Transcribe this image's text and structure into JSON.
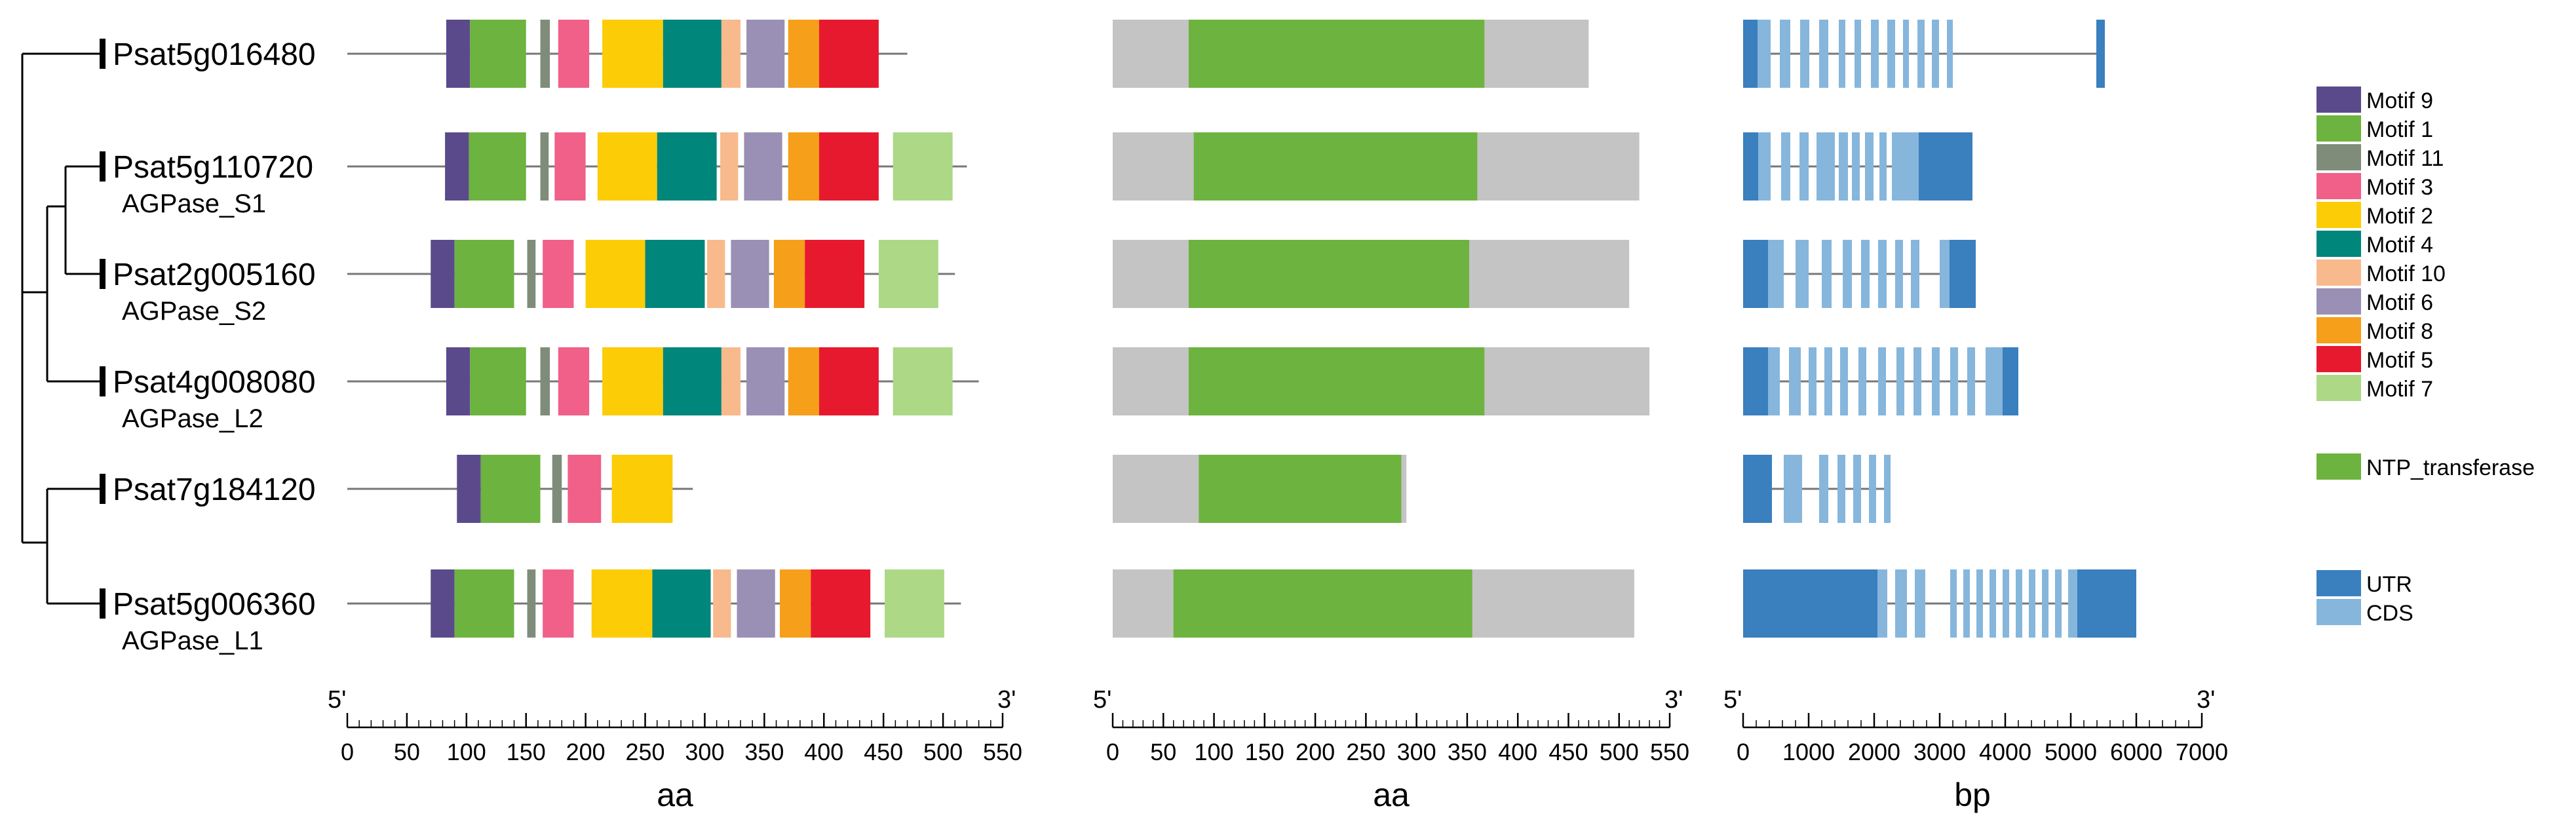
{
  "colors": {
    "motif_9": "#5b4a8b",
    "motif_1": "#6db33f",
    "motif_11": "#7f8c7a",
    "motif_3": "#f06088",
    "motif_2": "#fccc06",
    "motif_4": "#00867a",
    "motif_10": "#f8b98c",
    "motif_6": "#9a8fb4",
    "motif_8": "#f59f1b",
    "motif_5": "#e7192e",
    "motif_7": "#add886",
    "domain_bg": "#c4c4c4",
    "ntp": "#6db33f",
    "utr": "#3a7fbe",
    "cds": "#86b6dc",
    "line": "#777777"
  },
  "genes": [
    {
      "id": "Psat5g016480",
      "name": "",
      "length_aa": 470,
      "motifs": [
        {
          "m": "motif_9",
          "s": 83,
          "e": 103
        },
        {
          "m": "motif_1",
          "s": 103,
          "e": 150
        },
        {
          "m": "motif_11",
          "s": 162,
          "e": 170
        },
        {
          "m": "motif_3",
          "s": 177,
          "e": 203
        },
        {
          "m": "motif_2",
          "s": 214,
          "e": 265
        },
        {
          "m": "motif_4",
          "s": 265,
          "e": 314
        },
        {
          "m": "motif_10",
          "s": 314,
          "e": 330
        },
        {
          "m": "motif_6",
          "s": 335,
          "e": 367
        },
        {
          "m": "motif_8",
          "s": 370,
          "e": 396
        },
        {
          "m": "motif_5",
          "s": 396,
          "e": 446
        }
      ],
      "domain": {
        "s": 75,
        "e": 367
      },
      "gene_length_bp": 5520,
      "exons": [
        {
          "t": "utr",
          "s": 0,
          "e": 220
        },
        {
          "t": "cds",
          "s": 220,
          "e": 420
        },
        {
          "t": "cds",
          "s": 560,
          "e": 720
        },
        {
          "t": "cds",
          "s": 870,
          "e": 1010
        },
        {
          "t": "cds",
          "s": 1160,
          "e": 1300
        },
        {
          "t": "cds",
          "s": 1460,
          "e": 1560
        },
        {
          "t": "cds",
          "s": 1700,
          "e": 1800
        },
        {
          "t": "cds",
          "s": 1950,
          "e": 2070
        },
        {
          "t": "cds",
          "s": 2200,
          "e": 2320
        },
        {
          "t": "cds",
          "s": 2440,
          "e": 2530
        },
        {
          "t": "cds",
          "s": 2660,
          "e": 2770
        },
        {
          "t": "cds",
          "s": 2880,
          "e": 2990
        },
        {
          "t": "cds",
          "s": 3110,
          "e": 3200
        },
        {
          "t": "utr",
          "s": 5390,
          "e": 5520
        }
      ]
    },
    {
      "id": "Psat5g110720",
      "name": "AGPase_S1",
      "length_aa": 520,
      "motifs": [
        {
          "m": "motif_9",
          "s": 82,
          "e": 102
        },
        {
          "m": "motif_1",
          "s": 102,
          "e": 150
        },
        {
          "m": "motif_11",
          "s": 162,
          "e": 169
        },
        {
          "m": "motif_3",
          "s": 174,
          "e": 200
        },
        {
          "m": "motif_2",
          "s": 210,
          "e": 260
        },
        {
          "m": "motif_4",
          "s": 260,
          "e": 310
        },
        {
          "m": "motif_10",
          "s": 313,
          "e": 328
        },
        {
          "m": "motif_6",
          "s": 333,
          "e": 365
        },
        {
          "m": "motif_8",
          "s": 370,
          "e": 396
        },
        {
          "m": "motif_5",
          "s": 396,
          "e": 446
        },
        {
          "m": "motif_7",
          "s": 458,
          "e": 508
        }
      ],
      "domain": {
        "s": 80,
        "e": 360
      },
      "gene_length_bp": 3500,
      "exons": [
        {
          "t": "utr",
          "s": 0,
          "e": 230
        },
        {
          "t": "cds",
          "s": 230,
          "e": 420
        },
        {
          "t": "cds",
          "s": 580,
          "e": 720
        },
        {
          "t": "cds",
          "s": 860,
          "e": 1000
        },
        {
          "t": "cds",
          "s": 1120,
          "e": 1400
        },
        {
          "t": "cds",
          "s": 1460,
          "e": 1600
        },
        {
          "t": "cds",
          "s": 1660,
          "e": 1780
        },
        {
          "t": "cds",
          "s": 1860,
          "e": 1990
        },
        {
          "t": "cds",
          "s": 2080,
          "e": 2190
        },
        {
          "t": "cds",
          "s": 2270,
          "e": 2560
        },
        {
          "t": "cds",
          "s": 2560,
          "e": 2680
        },
        {
          "t": "utr",
          "s": 2680,
          "e": 3500
        }
      ]
    },
    {
      "id": "Psat2g005160",
      "name": "AGPase_S2",
      "length_aa": 510,
      "motifs": [
        {
          "m": "motif_9",
          "s": 70,
          "e": 90
        },
        {
          "m": "motif_1",
          "s": 90,
          "e": 140
        },
        {
          "m": "motif_11",
          "s": 151,
          "e": 158
        },
        {
          "m": "motif_3",
          "s": 164,
          "e": 190
        },
        {
          "m": "motif_2",
          "s": 200,
          "e": 250
        },
        {
          "m": "motif_4",
          "s": 250,
          "e": 300
        },
        {
          "m": "motif_10",
          "s": 302,
          "e": 317
        },
        {
          "m": "motif_6",
          "s": 322,
          "e": 354
        },
        {
          "m": "motif_8",
          "s": 358,
          "e": 384
        },
        {
          "m": "motif_5",
          "s": 384,
          "e": 434
        },
        {
          "m": "motif_7",
          "s": 446,
          "e": 496
        }
      ],
      "domain": {
        "s": 75,
        "e": 352
      },
      "gene_length_bp": 3550,
      "exons": [
        {
          "t": "utr",
          "s": 0,
          "e": 380
        },
        {
          "t": "cds",
          "s": 380,
          "e": 620
        },
        {
          "t": "cds",
          "s": 800,
          "e": 1000
        },
        {
          "t": "cds",
          "s": 1200,
          "e": 1350
        },
        {
          "t": "cds",
          "s": 1520,
          "e": 1660
        },
        {
          "t": "cds",
          "s": 1800,
          "e": 1930
        },
        {
          "t": "cds",
          "s": 2060,
          "e": 2190
        },
        {
          "t": "cds",
          "s": 2320,
          "e": 2440
        },
        {
          "t": "cds",
          "s": 2560,
          "e": 2690
        },
        {
          "t": "cds",
          "s": 3000,
          "e": 3150
        },
        {
          "t": "utr",
          "s": 3150,
          "e": 3550
        }
      ]
    },
    {
      "id": "Psat4g008080",
      "name": "AGPase_L2",
      "length_aa": 530,
      "motifs": [
        {
          "m": "motif_9",
          "s": 83,
          "e": 103
        },
        {
          "m": "motif_1",
          "s": 103,
          "e": 150
        },
        {
          "m": "motif_11",
          "s": 162,
          "e": 170
        },
        {
          "m": "motif_3",
          "s": 177,
          "e": 203
        },
        {
          "m": "motif_2",
          "s": 214,
          "e": 265
        },
        {
          "m": "motif_4",
          "s": 265,
          "e": 314
        },
        {
          "m": "motif_10",
          "s": 314,
          "e": 330
        },
        {
          "m": "motif_6",
          "s": 335,
          "e": 367
        },
        {
          "m": "motif_8",
          "s": 370,
          "e": 396
        },
        {
          "m": "motif_5",
          "s": 396,
          "e": 446
        },
        {
          "m": "motif_7",
          "s": 458,
          "e": 508
        }
      ],
      "domain": {
        "s": 75,
        "e": 367
      },
      "gene_length_bp": 4200,
      "exons": [
        {
          "t": "utr",
          "s": 0,
          "e": 380
        },
        {
          "t": "cds",
          "s": 380,
          "e": 560
        },
        {
          "t": "cds",
          "s": 700,
          "e": 880
        },
        {
          "t": "cds",
          "s": 1000,
          "e": 1120
        },
        {
          "t": "cds",
          "s": 1240,
          "e": 1360
        },
        {
          "t": "cds",
          "s": 1480,
          "e": 1600
        },
        {
          "t": "cds",
          "s": 1760,
          "e": 1880
        },
        {
          "t": "cds",
          "s": 2060,
          "e": 2180
        },
        {
          "t": "cds",
          "s": 2340,
          "e": 2460
        },
        {
          "t": "cds",
          "s": 2600,
          "e": 2720
        },
        {
          "t": "cds",
          "s": 2880,
          "e": 3000
        },
        {
          "t": "cds",
          "s": 3160,
          "e": 3280
        },
        {
          "t": "cds",
          "s": 3420,
          "e": 3540
        },
        {
          "t": "cds",
          "s": 3700,
          "e": 3820
        },
        {
          "t": "cds",
          "s": 3820,
          "e": 3960
        },
        {
          "t": "utr",
          "s": 3960,
          "e": 4200
        }
      ]
    },
    {
      "id": "Psat7g184120",
      "name": "",
      "length_aa": 290,
      "motifs": [
        {
          "m": "motif_9",
          "s": 92,
          "e": 112
        },
        {
          "m": "motif_1",
          "s": 112,
          "e": 162
        },
        {
          "m": "motif_11",
          "s": 172,
          "e": 180
        },
        {
          "m": "motif_3",
          "s": 185,
          "e": 213
        },
        {
          "m": "motif_2",
          "s": 222,
          "e": 273
        }
      ],
      "domain": {
        "s": 85,
        "e": 285
      },
      "gene_length_bp": 2250,
      "exons": [
        {
          "t": "utr",
          "s": 0,
          "e": 440
        },
        {
          "t": "cds",
          "s": 620,
          "e": 900
        },
        {
          "t": "cds",
          "s": 1160,
          "e": 1300
        },
        {
          "t": "cds",
          "s": 1440,
          "e": 1560
        },
        {
          "t": "cds",
          "s": 1680,
          "e": 1800
        },
        {
          "t": "cds",
          "s": 1920,
          "e": 2030
        },
        {
          "t": "cds",
          "s": 2150,
          "e": 2250
        }
      ]
    },
    {
      "id": "Psat5g006360",
      "name": "AGPase_L1",
      "length_aa": 515,
      "motifs": [
        {
          "m": "motif_9",
          "s": 70,
          "e": 90
        },
        {
          "m": "motif_1",
          "s": 90,
          "e": 140
        },
        {
          "m": "motif_11",
          "s": 151,
          "e": 158
        },
        {
          "m": "motif_3",
          "s": 164,
          "e": 190
        },
        {
          "m": "motif_2",
          "s": 205,
          "e": 256
        },
        {
          "m": "motif_4",
          "s": 256,
          "e": 305
        },
        {
          "m": "motif_10",
          "s": 307,
          "e": 322
        },
        {
          "m": "motif_6",
          "s": 327,
          "e": 359
        },
        {
          "m": "motif_8",
          "s": 363,
          "e": 389
        },
        {
          "m": "motif_5",
          "s": 389,
          "e": 439
        },
        {
          "m": "motif_7",
          "s": 451,
          "e": 501
        }
      ],
      "domain": {
        "s": 60,
        "e": 355
      },
      "gene_length_bp": 6000,
      "exons": [
        {
          "t": "utr",
          "s": 0,
          "e": 2050
        },
        {
          "t": "cds",
          "s": 2050,
          "e": 2200
        },
        {
          "t": "cds",
          "s": 2320,
          "e": 2500
        },
        {
          "t": "cds",
          "s": 2620,
          "e": 2780
        },
        {
          "t": "cds",
          "s": 3160,
          "e": 3260
        },
        {
          "t": "cds",
          "s": 3360,
          "e": 3460
        },
        {
          "t": "cds",
          "s": 3560,
          "e": 3660
        },
        {
          "t": "cds",
          "s": 3760,
          "e": 3860
        },
        {
          "t": "cds",
          "s": 3960,
          "e": 4060
        },
        {
          "t": "cds",
          "s": 4160,
          "e": 4260
        },
        {
          "t": "cds",
          "s": 4360,
          "e": 4460
        },
        {
          "t": "cds",
          "s": 4560,
          "e": 4660
        },
        {
          "t": "cds",
          "s": 4760,
          "e": 4860
        },
        {
          "t": "cds",
          "s": 4960,
          "e": 5100
        },
        {
          "t": "utr",
          "s": 5100,
          "e": 6000
        }
      ]
    }
  ],
  "legend": {
    "motifs": [
      {
        "key": "motif_9",
        "label": "Motif 9"
      },
      {
        "key": "motif_1",
        "label": "Motif 1"
      },
      {
        "key": "motif_11",
        "label": "Motif 11"
      },
      {
        "key": "motif_3",
        "label": "Motif 3"
      },
      {
        "key": "motif_2",
        "label": "Motif 2"
      },
      {
        "key": "motif_4",
        "label": "Motif 4"
      },
      {
        "key": "motif_10",
        "label": "Motif 10"
      },
      {
        "key": "motif_6",
        "label": "Motif 6"
      },
      {
        "key": "motif_8",
        "label": "Motif 8"
      },
      {
        "key": "motif_5",
        "label": "Motif 5"
      },
      {
        "key": "motif_7",
        "label": "Motif 7"
      }
    ],
    "domain": {
      "key": "ntp",
      "label": "NTP_transferase"
    },
    "structure": [
      {
        "key": "utr",
        "label": "UTR"
      },
      {
        "key": "cds",
        "label": "CDS"
      }
    ]
  },
  "axes": [
    {
      "id": "motif",
      "end5": "5'",
      "end3": "3'",
      "max": 550,
      "step": 50,
      "unit": "aa",
      "ticks": [
        "0",
        "50",
        "100",
        "150",
        "200",
        "250",
        "300",
        "350",
        "400",
        "450",
        "500",
        "550"
      ]
    },
    {
      "id": "domain",
      "end5": "5'",
      "end3": "3'",
      "max": 550,
      "step": 50,
      "unit": "aa",
      "ticks": [
        "0",
        "50",
        "100",
        "150",
        "200",
        "250",
        "300",
        "350",
        "400",
        "450",
        "500",
        "550"
      ]
    },
    {
      "id": "structure",
      "end5": "5'",
      "end3": "3'",
      "max": 7000,
      "step": 1000,
      "unit": "bp",
      "ticks": [
        "0",
        "1000",
        "2000",
        "3000",
        "4000",
        "5000",
        "6000",
        "7000"
      ]
    }
  ]
}
